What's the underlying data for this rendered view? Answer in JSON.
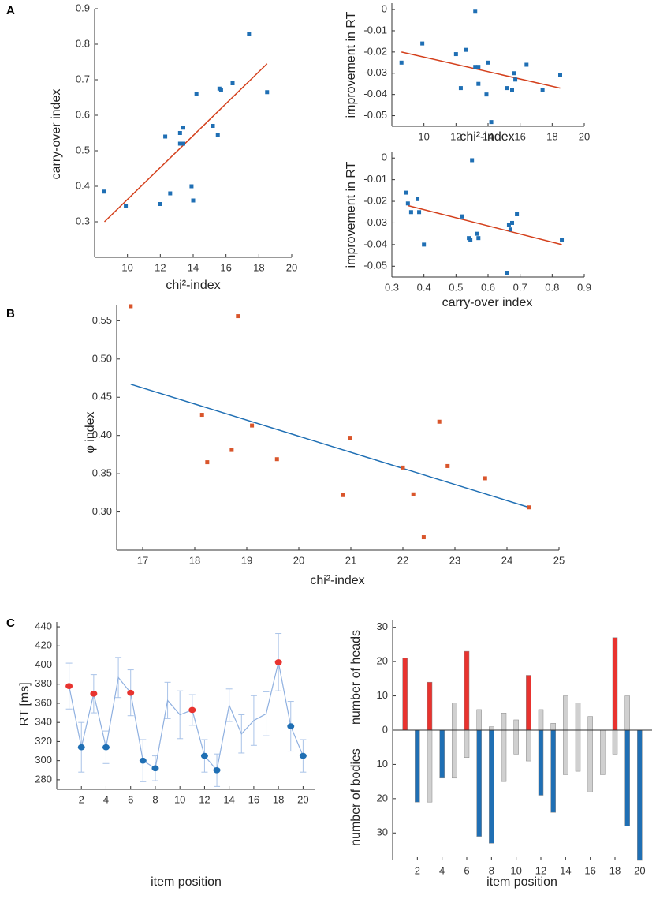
{
  "chart_data": [
    {
      "type": "scatter",
      "label": "A",
      "x_label": "chi²-index",
      "y_label": "carry-over index",
      "color": "#1f6fb4",
      "x": [
        8.6,
        9.9,
        12.0,
        12.3,
        12.6,
        13.2,
        13.2,
        13.4,
        13.4,
        13.9,
        14.0,
        14.2,
        15.2,
        15.5,
        15.6,
        15.7,
        16.4,
        17.4,
        18.5
      ],
      "y": [
        0.385,
        0.345,
        0.35,
        0.54,
        0.38,
        0.55,
        0.52,
        0.565,
        0.52,
        0.4,
        0.36,
        0.66,
        0.57,
        0.545,
        0.675,
        0.67,
        0.69,
        0.83,
        0.665
      ],
      "fit": {
        "x": [
          8.6,
          18.5
        ],
        "y": [
          0.3,
          0.745
        ],
        "color": "#d4401c"
      },
      "xlim": [
        8,
        20
      ],
      "xticks": [
        10,
        12,
        14,
        16,
        18,
        20
      ],
      "ylim": [
        0.2,
        0.9
      ],
      "yticks": [
        0.3,
        0.4,
        0.5,
        0.6,
        0.7,
        0.8,
        0.9
      ]
    },
    {
      "type": "scatter",
      "x_label": "chi²-index",
      "y_label": "improvement in RT",
      "color": "#1f6fb4",
      "x": [
        8.6,
        9.9,
        12.0,
        12.3,
        12.6,
        13.2,
        13.2,
        13.4,
        13.4,
        13.9,
        14.0,
        14.2,
        15.2,
        15.5,
        15.6,
        15.7,
        16.4,
        17.4,
        18.5
      ],
      "y": [
        -0.025,
        -0.016,
        -0.021,
        -0.037,
        -0.019,
        -0.001,
        -0.027,
        -0.035,
        -0.027,
        -0.04,
        -0.025,
        -0.053,
        -0.037,
        -0.038,
        -0.03,
        -0.033,
        -0.026,
        -0.038,
        -0.031
      ],
      "fit": {
        "x": [
          8.6,
          18.5
        ],
        "y": [
          -0.02,
          -0.037
        ],
        "color": "#d4401c"
      },
      "xlim": [
        8,
        20
      ],
      "xticks": [
        10,
        12,
        14,
        16,
        18,
        20
      ],
      "ylim": [
        -0.055,
        0.003
      ],
      "yticks": [
        0,
        -0.01,
        -0.02,
        -0.03,
        -0.04,
        -0.05
      ]
    },
    {
      "type": "scatter",
      "x_label": "carry-over index",
      "y_label": "improvement in RT",
      "color": "#1f6fb4",
      "x": [
        0.385,
        0.345,
        0.35,
        0.54,
        0.38,
        0.55,
        0.52,
        0.565,
        0.52,
        0.4,
        0.36,
        0.66,
        0.57,
        0.545,
        0.675,
        0.67,
        0.69,
        0.83,
        0.665
      ],
      "y": [
        -0.025,
        -0.016,
        -0.021,
        -0.037,
        -0.019,
        -0.001,
        -0.027,
        -0.035,
        -0.027,
        -0.04,
        -0.025,
        -0.053,
        -0.037,
        -0.038,
        -0.03,
        -0.033,
        -0.026,
        -0.038,
        -0.031
      ],
      "fit": {
        "x": [
          0.35,
          0.83
        ],
        "y": [
          -0.022,
          -0.04
        ],
        "color": "#d4401c"
      },
      "xlim": [
        0.3,
        0.9
      ],
      "xticks": [
        0.3,
        0.4,
        0.5,
        0.6,
        0.7,
        0.8,
        0.9
      ],
      "ylim": [
        -0.055,
        0.003
      ],
      "yticks": [
        0,
        -0.01,
        -0.02,
        -0.03,
        -0.04,
        -0.05
      ]
    },
    {
      "type": "scatter",
      "label": "B",
      "x_label": "chi²-index",
      "y_label": "φ index",
      "color": "#d9552b",
      "x": [
        16.77,
        18.14,
        18.24,
        18.71,
        18.83,
        19.1,
        19.58,
        20.85,
        20.98,
        22.0,
        22.2,
        22.4,
        22.7,
        22.86,
        23.58,
        24.42
      ],
      "y": [
        0.569,
        0.427,
        0.365,
        0.381,
        0.556,
        0.413,
        0.369,
        0.322,
        0.397,
        0.358,
        0.323,
        0.267,
        0.418,
        0.36,
        0.344,
        0.306
      ],
      "fit": {
        "x": [
          16.77,
          24.42
        ],
        "y": [
          0.467,
          0.306
        ],
        "color": "#1f6fb4"
      },
      "xlim": [
        16.5,
        25
      ],
      "xticks": [
        17,
        18,
        19,
        20,
        21,
        22,
        23,
        24,
        25
      ],
      "ylim": [
        0.25,
        0.57
      ],
      "yticks": [
        {
          "value": 0.3,
          "label": "0.30"
        },
        0.35,
        {
          "value": 0.4,
          "label": "0.40"
        },
        0.45,
        {
          "value": 0.5,
          "label": "0.50"
        },
        0.55
      ]
    },
    {
      "type": "line",
      "label": "C",
      "x_label": "item position",
      "y_label": "RT [ms]",
      "color": "#8fb0e0",
      "error_color": "#a9c3e8",
      "x": [
        1,
        2,
        3,
        4,
        5,
        6,
        7,
        8,
        9,
        10,
        11,
        12,
        13,
        14,
        15,
        16,
        17,
        18,
        19,
        20
      ],
      "values": [
        378,
        314,
        370,
        314,
        387,
        371,
        300,
        292,
        363,
        348,
        353,
        305,
        290,
        358,
        328,
        342,
        349,
        403,
        336,
        305
      ],
      "errors": [
        24,
        26,
        20,
        17,
        21,
        24,
        22,
        13,
        19,
        25,
        16,
        17,
        17,
        17,
        20,
        26,
        23,
        30,
        26,
        17
      ],
      "marker_colors": [
        "#e8332f",
        "#1f6fb4",
        "#e8332f",
        "#1f6fb4",
        null,
        "#e8332f",
        "#1f6fb4",
        "#1f6fb4",
        null,
        null,
        "#e8332f",
        "#1f6fb4",
        "#1f6fb4",
        null,
        null,
        null,
        null,
        "#e8332f",
        "#1f6fb4",
        "#1f6fb4"
      ],
      "xlim": [
        0,
        21
      ],
      "xticks": [
        2,
        4,
        6,
        8,
        10,
        12,
        14,
        16,
        18,
        20
      ],
      "ylim": [
        270,
        445
      ],
      "yticks": [
        280,
        300,
        320,
        340,
        360,
        380,
        400,
        420,
        440
      ]
    },
    {
      "type": "diverging_bar",
      "x_label": "item position",
      "y_label": "number of heads",
      "y2_label": "number of bodies",
      "x": [
        1,
        2,
        3,
        4,
        5,
        6,
        7,
        8,
        9,
        10,
        11,
        12,
        13,
        14,
        15,
        16,
        17,
        18,
        19,
        20
      ],
      "series": [
        {
          "values": [
            21,
            0,
            14,
            0,
            8,
            23,
            6,
            1,
            5,
            3,
            16,
            6,
            2,
            10,
            8,
            4,
            0,
            27,
            10,
            0
          ],
          "colors": [
            "#e8332f",
            "#d0d0d0",
            "#e8332f",
            "#d0d0d0",
            "#d0d0d0",
            "#e8332f",
            "#d0d0d0",
            "#d0d0d0",
            "#d0d0d0",
            "#d0d0d0",
            "#e8332f",
            "#d0d0d0",
            "#d0d0d0",
            "#d0d0d0",
            "#d0d0d0",
            "#d0d0d0",
            "#d0d0d0",
            "#e8332f",
            "#d0d0d0",
            "#d0d0d0"
          ]
        },
        {
          "axis": "y2",
          "values": [
            0,
            21,
            21,
            14,
            14,
            8,
            31,
            33,
            15,
            7,
            9,
            19,
            24,
            13,
            12,
            18,
            13,
            7,
            28,
            38
          ],
          "colors": [
            "#d0d0d0",
            "#1f6fb4",
            "#d0d0d0",
            "#1f6fb4",
            "#d0d0d0",
            "#d0d0d0",
            "#1f6fb4",
            "#1f6fb4",
            "#d0d0d0",
            "#d0d0d0",
            "#d0d0d0",
            "#1f6fb4",
            "#1f6fb4",
            "#d0d0d0",
            "#d0d0d0",
            "#d0d0d0",
            "#d0d0d0",
            "#d0d0d0",
            "#1f6fb4",
            "#1f6fb4"
          ]
        }
      ],
      "xlim": [
        0,
        21
      ],
      "xticks": [
        2,
        4,
        6,
        8,
        10,
        12,
        14,
        16,
        18,
        20
      ],
      "ylim": [
        0,
        32
      ],
      "yticks": [
        0,
        10,
        20,
        30
      ],
      "y2lim": [
        0,
        38
      ],
      "y2ticks": [
        10,
        20,
        30
      ]
    }
  ]
}
